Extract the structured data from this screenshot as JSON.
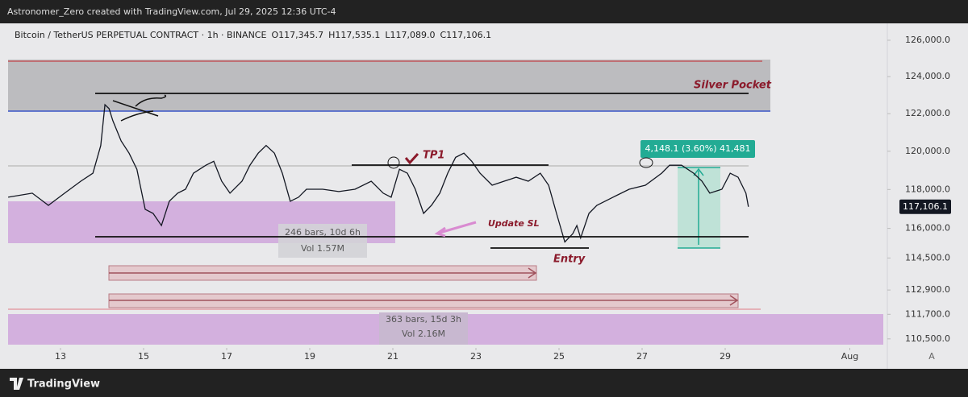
{
  "header": {
    "credit": "Astronomer_Zero created with TradingView.com, Jul 29, 2025 12:36 UTC-4",
    "symbol": "Bitcoin / TetherUS PERPETUAL CONTRACT · 1h · BINANCE",
    "open": "O117,345.7",
    "high": "H117,535.1",
    "low": "L117,089.0",
    "close": "C117,106.1"
  },
  "chart_data": {
    "type": "line",
    "color": "#131722",
    "log_scale": true,
    "x": [
      11.74,
      12.32,
      12.71,
      13.1,
      13.49,
      13.78,
      13.97,
      14.07,
      14.17,
      14.26,
      14.46,
      14.65,
      14.84,
      15.04,
      15.23,
      15.43,
      15.62,
      15.82,
      16.01,
      16.2,
      16.5,
      16.69,
      16.88,
      17.08,
      17.37,
      17.56,
      17.76,
      17.95,
      18.15,
      18.34,
      18.53,
      18.73,
      18.92,
      19.31,
      19.7,
      20.09,
      20.48,
      20.77,
      20.96,
      21.16,
      21.35,
      21.54,
      21.74,
      21.93,
      22.13,
      22.32,
      22.51,
      22.71,
      22.9,
      23.1,
      23.39,
      23.68,
      23.97,
      24.26,
      24.55,
      24.75,
      24.94,
      25.14,
      25.33,
      25.43,
      25.52,
      25.72,
      25.91,
      26.3,
      26.69,
      27.08,
      27.47,
      27.66,
      27.95,
      28.24,
      28.44,
      28.63,
      28.92,
      29.12,
      29.31,
      29.5,
      29.56
    ],
    "values": [
      117598,
      117806,
      117182,
      117806,
      118430,
      118846,
      120302,
      122480,
      122270,
      121620,
      120540,
      119900,
      119054,
      116974,
      116766,
      116142,
      117390,
      117806,
      118014,
      118846,
      119262,
      119470,
      118430,
      117806,
      118430,
      119262,
      119900,
      120302,
      119900,
      118846,
      117390,
      117598,
      118014,
      118014,
      117890,
      118014,
      118430,
      117806,
      117598,
      119054,
      118846,
      118014,
      116766,
      117182,
      117806,
      118846,
      119680,
      119900,
      119470,
      118846,
      118222,
      118430,
      118638,
      118430,
      118846,
      118222,
      116766,
      115310,
      115726,
      116142,
      115518,
      116766,
      117182,
      117598,
      118014,
      118222,
      118846,
      119262,
      119262,
      118846,
      118430,
      117806,
      118014,
      118846,
      118638,
      117806,
      117106
    ],
    "xlim": [
      11.544,
      32.903
    ],
    "xticks": [
      13,
      15,
      17,
      19,
      21,
      23,
      25,
      27,
      29,
      {
        "value": 32,
        "label": "Aug"
      }
    ],
    "ylim": [
      110064,
      126894
    ],
    "yticks": [
      {
        "value": 126000,
        "label": "126,000.0"
      },
      {
        "value": 124000,
        "label": "124,000.0"
      },
      {
        "value": 122000,
        "label": "122,000.0"
      },
      {
        "value": 120000,
        "label": "120,000.0"
      },
      {
        "value": 118000,
        "label": "118,000.0"
      },
      {
        "value": 116000,
        "label": "116,000.0"
      },
      {
        "value": 114500,
        "label": "114,500.0"
      },
      {
        "value": 112900,
        "label": "112,900.0"
      },
      {
        "value": 111700,
        "label": "111,700.0"
      },
      {
        "value": 110500,
        "label": "110,500.0"
      }
    ],
    "last_price": {
      "value": 117106.1,
      "label": "117,106.1"
    },
    "annotations": {
      "zone": "Silver Pocket",
      "tp": "TP1",
      "sl": "Update SL",
      "entry": "Entry",
      "range1_bars": "246 bars, 10d 6h",
      "range1_vol": "Vol 1.57M",
      "range2_bars": "363 bars, 15d 3h",
      "range2_vol": "Vol 2.16M",
      "measure": "4,148.1 (3.60%) 41,481"
    },
    "scale_mode": "A"
  },
  "footer": {
    "brand": "TradingView"
  }
}
